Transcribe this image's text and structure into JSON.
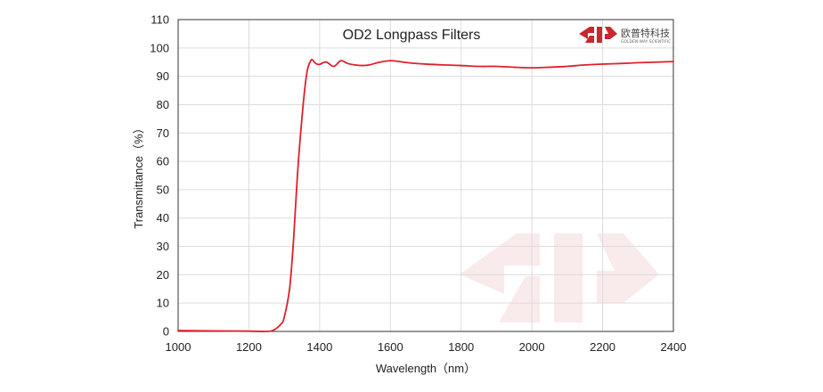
{
  "chart_data": {
    "type": "line",
    "title": "OD2  Longpass Filters",
    "xlabel": "Wavelength（nm）",
    "ylabel": "Transmittance（%）",
    "xlim": [
      1000,
      2400
    ],
    "ylim": [
      0,
      110
    ],
    "xticks": [
      1000,
      1200,
      1400,
      1600,
      1800,
      2000,
      2200,
      2400
    ],
    "yticks": [
      0,
      10,
      20,
      30,
      40,
      50,
      60,
      70,
      80,
      90,
      100,
      110
    ],
    "grid": true,
    "legend": "none",
    "series": [
      {
        "color": "#e0202a",
        "x": [
          1000,
          1100,
          1200,
          1250,
          1270,
          1290,
          1300,
          1315,
          1325,
          1330,
          1340,
          1355,
          1365,
          1375,
          1380,
          1385,
          1392,
          1400,
          1410,
          1420,
          1440,
          1460,
          1480,
          1500,
          1520,
          1540,
          1570,
          1600,
          1620,
          1650,
          1700,
          1750,
          1800,
          1850,
          1900,
          1950,
          2000,
          2050,
          2100,
          2150,
          2200,
          2250,
          2300,
          2350,
          2400
        ],
        "y": [
          0.3,
          0.2,
          0.1,
          0.0,
          0.5,
          2.5,
          5.0,
          15.0,
          30.0,
          40.0,
          60.0,
          82.0,
          92.0,
          95.5,
          95.8,
          95.0,
          94.3,
          94.2,
          94.8,
          95.0,
          93.5,
          95.5,
          94.5,
          94.0,
          93.8,
          94.0,
          95.0,
          95.5,
          95.3,
          94.8,
          94.3,
          94.0,
          93.8,
          93.5,
          93.5,
          93.2,
          93.0,
          93.2,
          93.5,
          94.0,
          94.3,
          94.5,
          94.8,
          95.0,
          95.2
        ]
      }
    ]
  },
  "logo": {
    "cn": "欧普特科技",
    "en": "GOLDEN WAY SCIENTIFIC",
    "color": "#c9282d"
  }
}
